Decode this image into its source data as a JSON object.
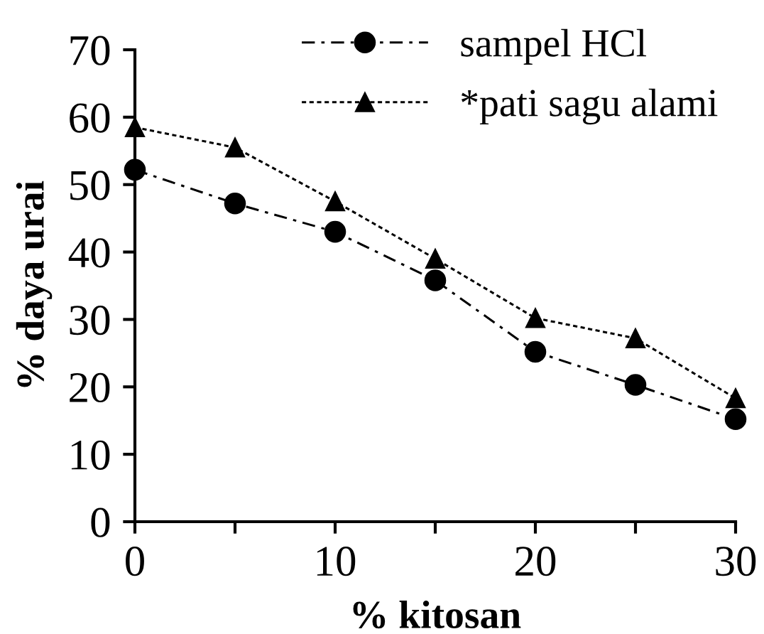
{
  "chart_data": {
    "type": "line",
    "xlabel": "% kitosan",
    "ylabel": "% daya urai",
    "x": [
      0,
      5,
      10,
      15,
      20,
      25,
      30
    ],
    "series": [
      {
        "name": "sampel HCl",
        "color": "#000000",
        "marker": "circle",
        "line_style": "dashed",
        "values": [
          52.2,
          47.2,
          43.0,
          35.8,
          25.2,
          20.3,
          15.2
        ]
      },
      {
        "name": "*pati sagu alami",
        "color": "#000000",
        "marker": "triangle",
        "line_style": "dotted",
        "values": [
          58.5,
          55.5,
          47.5,
          39.0,
          30.2,
          27.2,
          18.3
        ]
      }
    ],
    "xlim": [
      0,
      30
    ],
    "xticks": [
      0,
      {
        "value": 5,
        "label": null
      },
      10,
      {
        "value": 15,
        "label": null
      },
      20,
      {
        "value": 25,
        "label": null
      },
      30
    ],
    "ylim": [
      0,
      70
    ],
    "yticks": [
      0,
      10,
      20,
      30,
      40,
      50,
      60,
      70
    ],
    "grid": false,
    "legend": "top right"
  }
}
